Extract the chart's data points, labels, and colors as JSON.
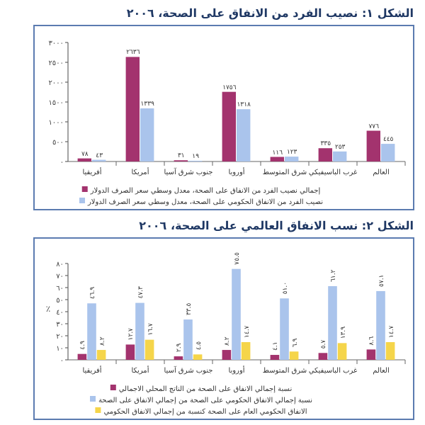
{
  "chart_data": [
    {
      "type": "bar",
      "title": "الشكل ١: نصيب الفرد من الانفاق على الصحة، ٢٠٠٦",
      "categories": [
        "أفريقيا",
        "أمريكا",
        "جنوب شرق آسيا",
        "أوروبا",
        "شرق المتوسط",
        "غرب الباسيفيكي",
        "العالم"
      ],
      "series": [
        {
          "name": "إجمالي نصيب الفرد من الانفاق على الصحة، معدل وسطي سعر الصرف الدولار",
          "color": "#a3336e",
          "values": [
            78,
            2636,
            31,
            1756,
            116,
            335,
            776
          ],
          "value_labels": [
            "٧٨",
            "٢٦٣٦",
            "٣١",
            "١٧٥٦",
            "١١٦",
            "٣٣٥",
            "٧٧٦"
          ]
        },
        {
          "name": "نصيب الفرد من الانفاق الحكومي على الصحة، معدل وسطي سعر الصرف الدولار",
          "color": "#aac4ec",
          "values": [
            43,
            1339,
            19,
            1318,
            123,
            253,
            445
          ],
          "value_labels": [
            "٤٣",
            "١٣٣٩",
            "١٩",
            "١٣١٨",
            "١٢٣",
            "٢٥٣",
            "٤٤٥"
          ]
        }
      ],
      "ylim": [
        0,
        3000
      ],
      "yticks": [
        {
          "value": 0,
          "label": "٠"
        },
        {
          "value": 500,
          "label": "٥٠٠"
        },
        {
          "value": 1000,
          "label": "١٠٠٠"
        },
        {
          "value": 1500,
          "label": "١٥٠٠"
        },
        {
          "value": 2000,
          "label": "٢٠٠٠"
        },
        {
          "value": 2500,
          "label": "٢٥٠٠"
        },
        {
          "value": 3000,
          "label": "٣٠٠٠"
        }
      ],
      "legend": "bottom"
    },
    {
      "type": "bar",
      "title": "الشكل ٢: نسب الانفاق العالمي على الصحة، ٢٠٠٦",
      "ylabel": "٪",
      "categories": [
        "أفريقيا",
        "أمريكا",
        "جنوب شرق آسيا",
        "أوروبا",
        "شرق المتوسط",
        "غرب الباسيفيكي",
        "العالم"
      ],
      "series": [
        {
          "name": "نسبة إجمالي الانفاق على الصحة من الناتج المحلي الاجمالي",
          "color": "#a3336e",
          "values": [
            4.9,
            12.7,
            2.9,
            8.2,
            4.1,
            5.7,
            8.6
          ],
          "value_labels": [
            "٤.٩",
            "١٢.٧",
            "٢.٩",
            "٨.٢",
            "٤.١",
            "٥.٧",
            "٨.٦"
          ]
        },
        {
          "name": "نسبة إجمالي الانفاق الحكومي على الصحة من إجمالي الانفاق على الصحة",
          "color": "#aac4ec",
          "values": [
            46.9,
            47.3,
            33.5,
            75.5,
            51.0,
            61.2,
            57.1
          ],
          "value_labels": [
            "٤٦.٩",
            "٤٧.٣",
            "٣٣.٥",
            "٧٥.٥",
            "٥١.٠",
            "٦١.٢",
            "٥٧.١"
          ]
        },
        {
          "name": "الانفاق الحكومي العام على الصحة كنسبة من إجمالي الانفاق الحكومي",
          "color": "#f5d54a",
          "values": [
            8.2,
            16.7,
            4.5,
            14.7,
            6.9,
            13.9,
            14.7
          ],
          "value_labels": [
            "٨.٢",
            "١٦.٧",
            "٤.٥",
            "١٤.٧",
            "٦.٩",
            "١٣.٩",
            "١٤.٧"
          ]
        }
      ],
      "ylim": [
        0,
        80
      ],
      "yticks": [
        {
          "value": 0,
          "label": "٠"
        },
        {
          "value": 10,
          "label": "١٠"
        },
        {
          "value": 20,
          "label": "٢٠"
        },
        {
          "value": 30,
          "label": "٣٠"
        },
        {
          "value": 40,
          "label": "٤٠"
        },
        {
          "value": 50,
          "label": "٥٠"
        },
        {
          "value": 60,
          "label": "٦٠"
        },
        {
          "value": 70,
          "label": "٧٠"
        },
        {
          "value": 80,
          "label": "٨٠"
        }
      ],
      "legend": "bottom"
    }
  ]
}
